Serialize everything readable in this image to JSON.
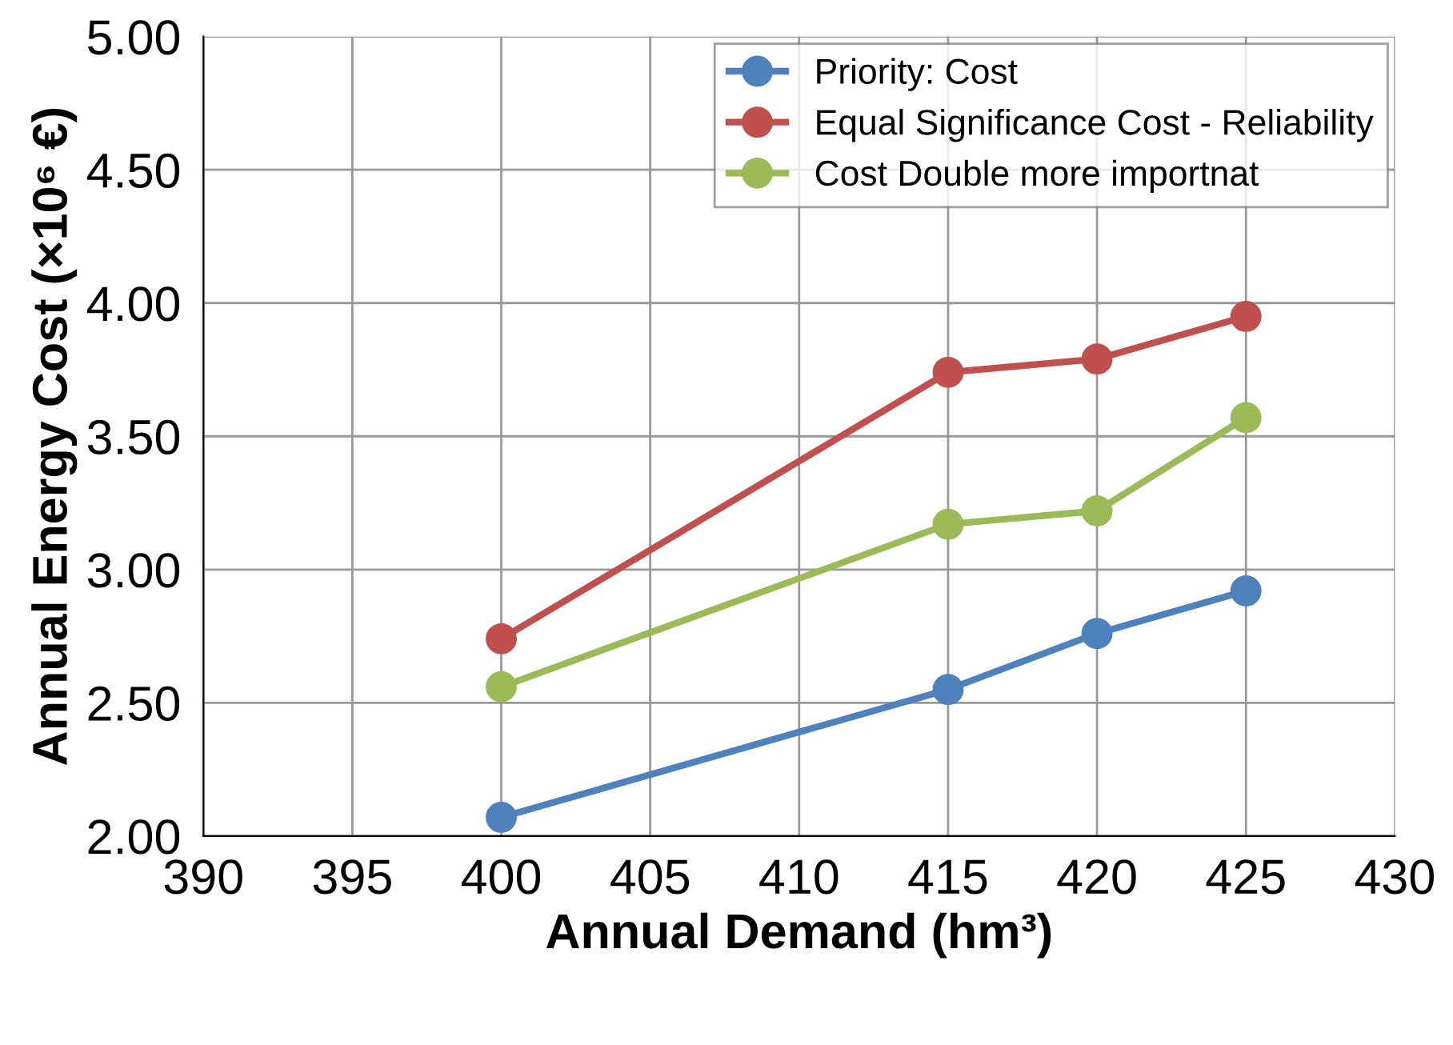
{
  "chart_data": {
    "type": "line",
    "xlabel": "Annual Demand (hm³)",
    "ylabel": "Annual Energy Cost (×10⁶ €)",
    "x": [
      400,
      415,
      420,
      425
    ],
    "series": [
      {
        "name": "Priority: Cost",
        "color": "#4f81bd",
        "values": [
          2.07,
          2.55,
          2.76,
          2.92
        ]
      },
      {
        "name": "Equal Significance Cost - Reliability",
        "color": "#c0504d",
        "values": [
          2.74,
          3.74,
          3.79,
          3.95
        ]
      },
      {
        "name": "Cost Double more importnat",
        "color": "#9bbb59",
        "values": [
          2.56,
          3.17,
          3.22,
          3.57
        ]
      }
    ],
    "xlim": [
      390,
      430
    ],
    "xticks": [
      390,
      395,
      400,
      405,
      410,
      415,
      420,
      425,
      430
    ],
    "ylim": [
      2.0,
      5.0
    ],
    "yticks": [
      {
        "value": 2.0,
        "label": "2.00"
      },
      {
        "value": 2.5,
        "label": "2.50"
      },
      {
        "value": 3.0,
        "label": "3.00"
      },
      {
        "value": 3.5,
        "label": "3.50"
      },
      {
        "value": 4.0,
        "label": "4.00"
      },
      {
        "value": 4.5,
        "label": "4.50"
      },
      {
        "value": 5.0,
        "label": "5.00"
      }
    ],
    "grid": true,
    "legend": "top right",
    "marker": "circle",
    "line_style": "solid"
  }
}
